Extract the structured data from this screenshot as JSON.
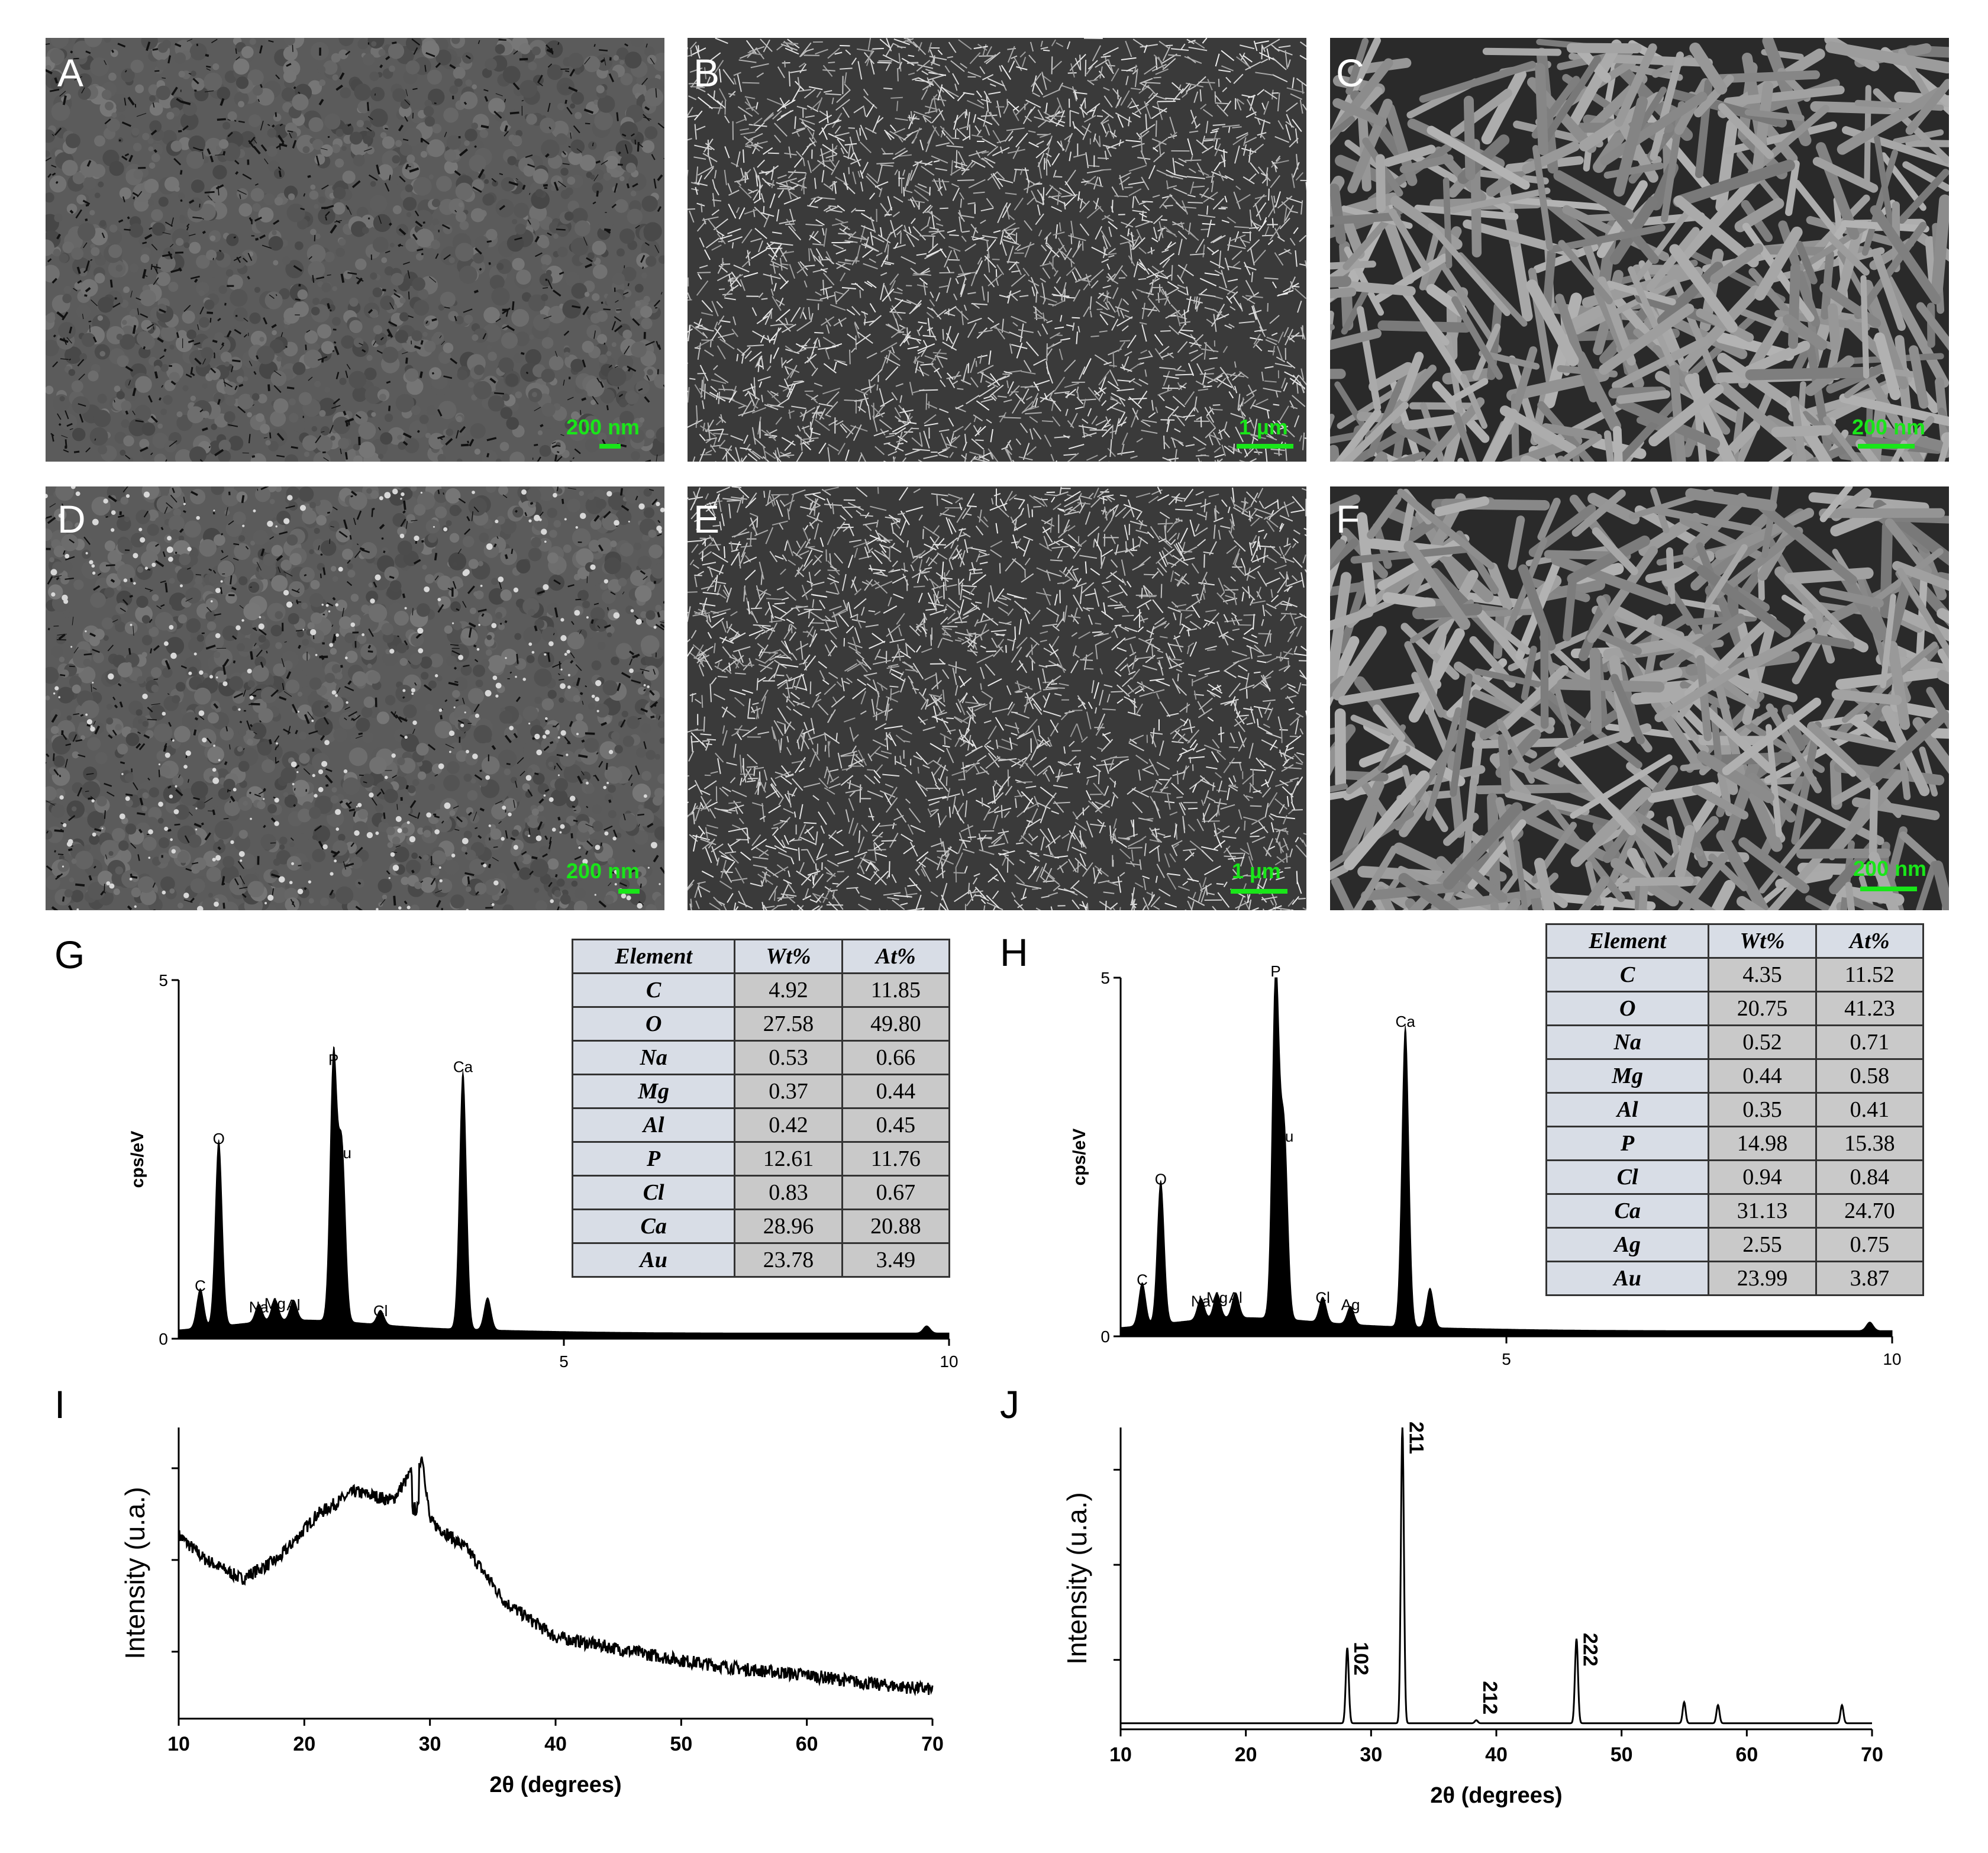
{
  "sem_panels": [
    {
      "letter": "A",
      "scale": "200 nm",
      "style": "compact"
    },
    {
      "letter": "B",
      "scale": "1 µm",
      "style": "fine-plates"
    },
    {
      "letter": "C",
      "scale": "200 nm",
      "style": "coarse-plates"
    },
    {
      "letter": "D",
      "scale": "200 nm",
      "style": "compact-dots"
    },
    {
      "letter": "E",
      "scale": "1 µm",
      "style": "fine-plates"
    },
    {
      "letter": "F",
      "scale": "200 nm",
      "style": "coarse-plates"
    }
  ],
  "eds_G": {
    "letter": "G",
    "ylabel": "cps/eV",
    "table": {
      "headers": [
        "Element",
        "Wt%",
        "At%"
      ],
      "rows": [
        [
          "C",
          "4.92",
          "11.85"
        ],
        [
          "O",
          "27.58",
          "49.80"
        ],
        [
          "Na",
          "0.53",
          "0.66"
        ],
        [
          "Mg",
          "0.37",
          "0.44"
        ],
        [
          "Al",
          "0.42",
          "0.45"
        ],
        [
          "P",
          "12.61",
          "11.76"
        ],
        [
          "Cl",
          "0.83",
          "0.67"
        ],
        [
          "Ca",
          "28.96",
          "20.88"
        ],
        [
          "Au",
          "23.78",
          "3.49"
        ]
      ]
    }
  },
  "eds_H": {
    "letter": "H",
    "ylabel": "cps/eV",
    "table": {
      "headers": [
        "Element",
        "Wt%",
        "At%"
      ],
      "rows": [
        [
          "C",
          "4.35",
          "11.52"
        ],
        [
          "O",
          "20.75",
          "41.23"
        ],
        [
          "Na",
          "0.52",
          "0.71"
        ],
        [
          "Mg",
          "0.44",
          "0.58"
        ],
        [
          "Al",
          "0.35",
          "0.41"
        ],
        [
          "P",
          "14.98",
          "15.38"
        ],
        [
          "Cl",
          "0.94",
          "0.84"
        ],
        [
          "Ca",
          "31.13",
          "24.70"
        ],
        [
          "Ag",
          "2.55",
          "0.75"
        ],
        [
          "Au",
          "23.99",
          "3.87"
        ]
      ]
    }
  },
  "xrd_I": {
    "letter": "I",
    "xlabel": "2θ (degrees)",
    "ylabel": "Intensity (u.a.)"
  },
  "xrd_J": {
    "letter": "J",
    "xlabel": "2θ (degrees)",
    "ylabel": "Intensity (u.a.)"
  },
  "chart_data": [
    {
      "type": "line",
      "panel": "G",
      "xlim": [
        0,
        10
      ],
      "ylim": [
        0,
        5
      ],
      "xticks": [
        5,
        10
      ],
      "yticks": [
        0,
        5
      ],
      "ylabel": "cps/eV",
      "peaks": [
        {
          "label": "C",
          "x": 0.28,
          "y": 0.55
        },
        {
          "label": "O",
          "x": 0.52,
          "y": 2.6
        },
        {
          "label": "Na",
          "x": 1.04,
          "y": 0.25
        },
        {
          "label": "Mg",
          "x": 1.25,
          "y": 0.3
        },
        {
          "label": "Al",
          "x": 1.49,
          "y": 0.28
        },
        {
          "label": "P",
          "x": 2.01,
          "y": 3.7
        },
        {
          "label": "Au",
          "x": 2.12,
          "y": 2.4
        },
        {
          "label": "Cl",
          "x": 2.62,
          "y": 0.2
        },
        {
          "label": "Ca",
          "x": 3.69,
          "y": 3.6
        },
        {
          "label": "",
          "x": 4.01,
          "y": 0.45
        },
        {
          "label": "",
          "x": 9.71,
          "y": 0.1
        }
      ]
    },
    {
      "type": "line",
      "panel": "H",
      "xlim": [
        0,
        10
      ],
      "ylim": [
        0,
        5
      ],
      "xticks": [
        5,
        10
      ],
      "yticks": [
        0,
        5
      ],
      "ylabel": "cps/eV",
      "peaks": [
        {
          "label": "C",
          "x": 0.28,
          "y": 0.6
        },
        {
          "label": "O",
          "x": 0.52,
          "y": 2.0
        },
        {
          "label": "Na",
          "x": 1.04,
          "y": 0.3
        },
        {
          "label": "Mg",
          "x": 1.25,
          "y": 0.35
        },
        {
          "label": "Al",
          "x": 1.49,
          "y": 0.35
        },
        {
          "label": "P",
          "x": 2.01,
          "y": 4.9
        },
        {
          "label": "Au",
          "x": 2.12,
          "y": 2.6
        },
        {
          "label": "Cl",
          "x": 2.62,
          "y": 0.35
        },
        {
          "label": "Ag",
          "x": 2.98,
          "y": 0.25
        },
        {
          "label": "Ca",
          "x": 3.69,
          "y": 4.2
        },
        {
          "label": "",
          "x": 4.01,
          "y": 0.55
        },
        {
          "label": "",
          "x": 9.71,
          "y": 0.12
        }
      ]
    },
    {
      "type": "line",
      "panel": "I",
      "xlim": [
        10,
        70
      ],
      "xticks": [
        10,
        20,
        30,
        40,
        50,
        60,
        70
      ],
      "xlabel": "2θ (degrees)",
      "ylabel": "Intensity (u.a.)",
      "points": [
        [
          10,
          0.63
        ],
        [
          12,
          0.55
        ],
        [
          15,
          0.48
        ],
        [
          18,
          0.55
        ],
        [
          21,
          0.7
        ],
        [
          24,
          0.78
        ],
        [
          27,
          0.75
        ],
        [
          29.4,
          0.9
        ],
        [
          30,
          0.68
        ],
        [
          33,
          0.58
        ],
        [
          36,
          0.4
        ],
        [
          40,
          0.28
        ],
        [
          45,
          0.24
        ],
        [
          50,
          0.2
        ],
        [
          55,
          0.17
        ],
        [
          60,
          0.15
        ],
        [
          65,
          0.12
        ],
        [
          70,
          0.1
        ]
      ]
    },
    {
      "type": "line",
      "panel": "J",
      "xlim": [
        10,
        70
      ],
      "xticks": [
        10,
        20,
        30,
        40,
        50,
        60,
        70
      ],
      "xlabel": "2θ (degrees)",
      "ylabel": "Intensity (u.a.)",
      "baseline": 0.02,
      "peaks": [
        {
          "label": "102",
          "x": 28.1,
          "y": 0.27
        },
        {
          "label": "211",
          "x": 32.5,
          "y": 1.0
        },
        {
          "label": "212",
          "x": 38.4,
          "y": 0.03
        },
        {
          "label": "222",
          "x": 46.4,
          "y": 0.3
        },
        {
          "label": "",
          "x": 55.0,
          "y": 0.09
        },
        {
          "label": "",
          "x": 57.7,
          "y": 0.08
        },
        {
          "label": "",
          "x": 67.6,
          "y": 0.08
        }
      ]
    }
  ]
}
